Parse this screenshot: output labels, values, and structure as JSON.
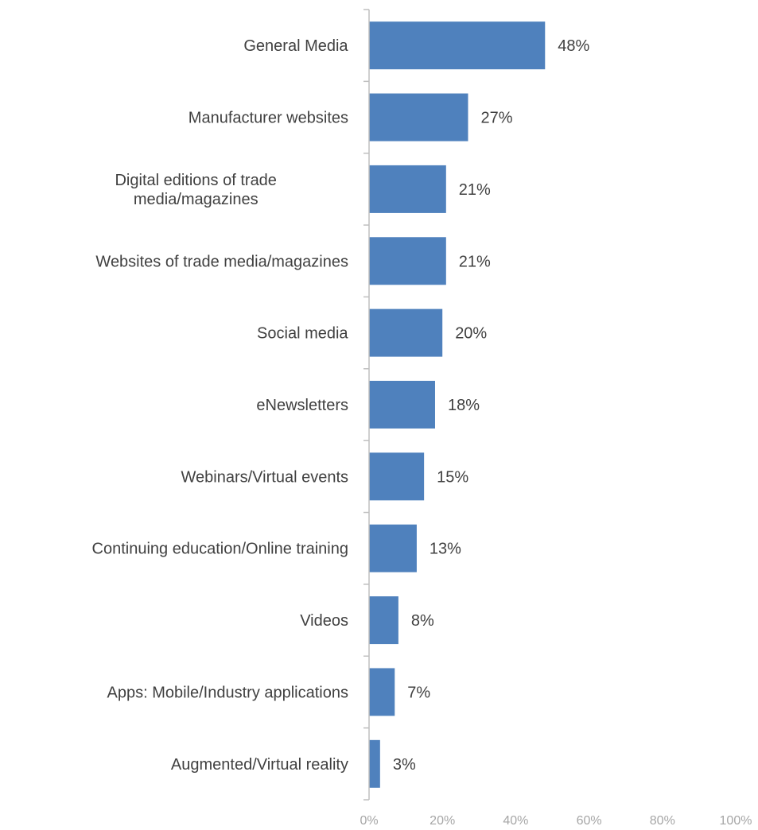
{
  "chart_data": {
    "type": "bar",
    "orientation": "horizontal",
    "title": "",
    "xlabel": "",
    "ylabel": "",
    "categories": [
      [
        "General Media"
      ],
      [
        "Manufacturer websites"
      ],
      [
        "Digital editions of trade",
        "media/magazines"
      ],
      [
        "Websites of trade media/magazines"
      ],
      [
        "Social media"
      ],
      [
        "eNewsletters"
      ],
      [
        "Webinars/Virtual events"
      ],
      [
        "Continuing education/Online training"
      ],
      [
        "Videos"
      ],
      [
        "Apps: Mobile/Industry applications"
      ],
      [
        "Augmented/Virtual reality"
      ]
    ],
    "values": [
      48,
      27,
      21,
      21,
      20,
      18,
      15,
      13,
      8,
      7,
      3
    ],
    "value_labels": [
      "48%",
      "27%",
      "21%",
      "21%",
      "20%",
      "18%",
      "15%",
      "13%",
      "8%",
      "7%",
      "3%"
    ],
    "xlim": [
      0,
      100
    ],
    "x_ticks": [
      "0%",
      "20%",
      "40%",
      "60%",
      "80%",
      "100%"
    ],
    "grid": false,
    "legend": "none",
    "bar_color": "#4f81bd",
    "axis_color": "#bfbfbf"
  }
}
